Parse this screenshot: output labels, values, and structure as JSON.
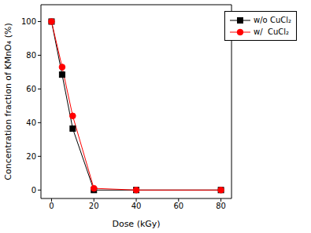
{
  "chart_data": {
    "type": "line",
    "x": [
      0,
      5,
      10,
      20,
      40,
      80
    ],
    "series": [
      {
        "name": "w/o CuCl₂",
        "color": "#000000",
        "marker": "square",
        "values": [
          100,
          68.5,
          36.5,
          0,
          0,
          0
        ]
      },
      {
        "name": "w/  CuCl₂",
        "color": "#ff0000",
        "marker": "circle",
        "values": [
          100,
          73,
          44,
          1,
          0,
          0
        ]
      }
    ],
    "xlabel": "Dose (kGy)",
    "ylabel": "Concentration fraction of KMnO₄ (%)",
    "xlim": [
      -5,
      85
    ],
    "xticks": [
      0,
      20,
      40,
      60,
      80
    ],
    "ylim": [
      -5,
      110
    ],
    "yticks": [
      0,
      20,
      40,
      60,
      80,
      100
    ],
    "legend": "upper right",
    "grid": false
  }
}
